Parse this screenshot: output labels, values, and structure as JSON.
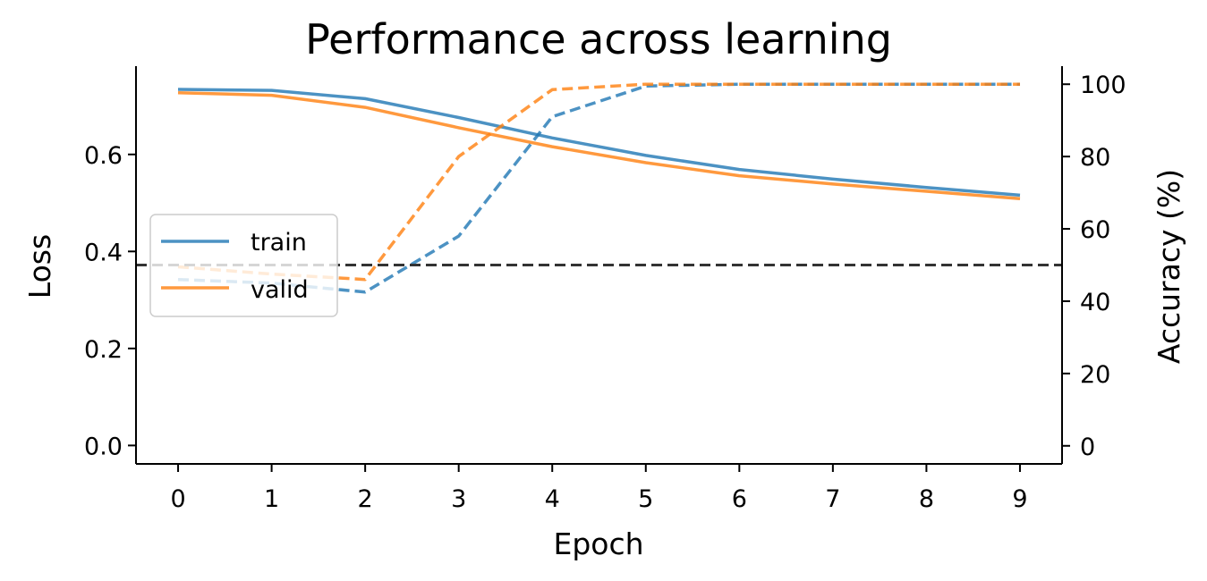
{
  "chart_data": {
    "type": "line",
    "title": "Performance across learning",
    "xlabel": "Epoch",
    "ylabel": "Loss",
    "y2label": "Accuracy (%)",
    "x": [
      0,
      1,
      2,
      3,
      4,
      5,
      6,
      7,
      8,
      9
    ],
    "xlim": [
      -0.45,
      9.45
    ],
    "ylim": [
      -0.038,
      0.782
    ],
    "y2lim": [
      -5,
      105
    ],
    "xticks": [
      "0",
      "1",
      "2",
      "3",
      "4",
      "5",
      "6",
      "7",
      "8",
      "9"
    ],
    "yticks": [
      "0.0",
      "0.2",
      "0.4",
      "0.6"
    ],
    "yticks_values": [
      0.0,
      0.2,
      0.4,
      0.6
    ],
    "y2ticks": [
      "0",
      "20",
      "40",
      "60",
      "80",
      "100"
    ],
    "y2ticks_values": [
      0,
      20,
      40,
      60,
      80,
      100
    ],
    "series": [
      {
        "name": "train",
        "axis": "loss",
        "style": "solid",
        "color": "#1f77b4",
        "values": [
          0.734,
          0.732,
          0.715,
          0.676,
          0.634,
          0.598,
          0.569,
          0.549,
          0.532,
          0.516
        ]
      },
      {
        "name": "valid",
        "axis": "loss",
        "style": "solid",
        "color": "#ff7f0e",
        "values": [
          0.727,
          0.722,
          0.697,
          0.655,
          0.616,
          0.583,
          0.556,
          0.539,
          0.524,
          0.509
        ]
      },
      {
        "name": "",
        "axis": "accuracy",
        "style": "dashed",
        "color": "#1f77b4",
        "values": [
          46,
          45,
          42.5,
          58,
          91,
          99.5,
          100,
          100,
          100,
          100
        ]
      },
      {
        "name": "",
        "axis": "accuracy",
        "style": "dashed",
        "color": "#ff7f0e",
        "values": [
          49.5,
          47.5,
          46,
          80,
          98.5,
          100,
          100,
          100,
          100,
          100
        ]
      }
    ],
    "reference_line": {
      "axis": "accuracy",
      "value": 50,
      "style": "dashed",
      "color": "#333333"
    },
    "legend": {
      "placement": "center-left",
      "entries": [
        "train",
        "valid"
      ]
    },
    "grid": false
  }
}
